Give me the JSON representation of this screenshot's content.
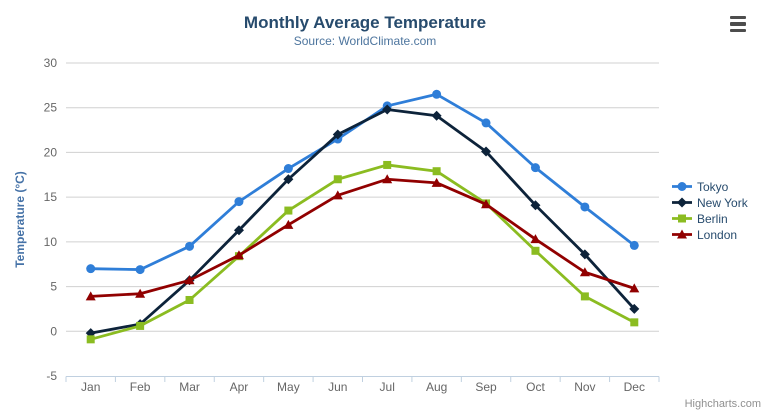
{
  "chart_data": {
    "type": "line",
    "title": "Monthly Average Temperature",
    "subtitle": "Source: WorldClimate.com",
    "categories": [
      "Jan",
      "Feb",
      "Mar",
      "Apr",
      "May",
      "Jun",
      "Jul",
      "Aug",
      "Sep",
      "Oct",
      "Nov",
      "Dec"
    ],
    "series": [
      {
        "name": "Tokyo",
        "color": "#2f7ed8",
        "marker": "circle",
        "values": [
          7.0,
          6.9,
          9.5,
          14.5,
          18.2,
          21.5,
          25.2,
          26.5,
          23.3,
          18.3,
          13.9,
          9.6
        ]
      },
      {
        "name": "New York",
        "color": "#0d233a",
        "marker": "diamond",
        "values": [
          -0.2,
          0.8,
          5.7,
          11.3,
          17.0,
          22.0,
          24.8,
          24.1,
          20.1,
          14.1,
          8.6,
          2.5
        ]
      },
      {
        "name": "Berlin",
        "color": "#8bbc21",
        "marker": "square",
        "values": [
          -0.9,
          0.6,
          3.5,
          8.4,
          13.5,
          17.0,
          18.6,
          17.9,
          14.3,
          9.0,
          3.9,
          1.0
        ]
      },
      {
        "name": "London",
        "color": "#910000",
        "marker": "triangle",
        "values": [
          3.9,
          4.2,
          5.7,
          8.5,
          11.9,
          15.2,
          17.0,
          16.6,
          14.2,
          10.3,
          6.6,
          4.8
        ]
      }
    ],
    "xlabel": "",
    "ylabel": "Temperature (°C)",
    "ylim": [
      -5,
      30
    ],
    "ytick_step": 5,
    "grid": true,
    "legend_position": "right"
  },
  "toolbar": {
    "context_menu_icon": "hamburger-menu-icon"
  },
  "credits": {
    "label": "Highcharts.com"
  },
  "palette": {
    "title_color": "#274b6d",
    "subtitle_color": "#4d759e",
    "axis_title_color": "#4572a7",
    "axis_label_color": "#666666",
    "legend_text_color": "#274b6d",
    "gridline_color": "#d0d0d0",
    "axis_line_color": "#c0d0e0",
    "credits_color": "#909090"
  }
}
